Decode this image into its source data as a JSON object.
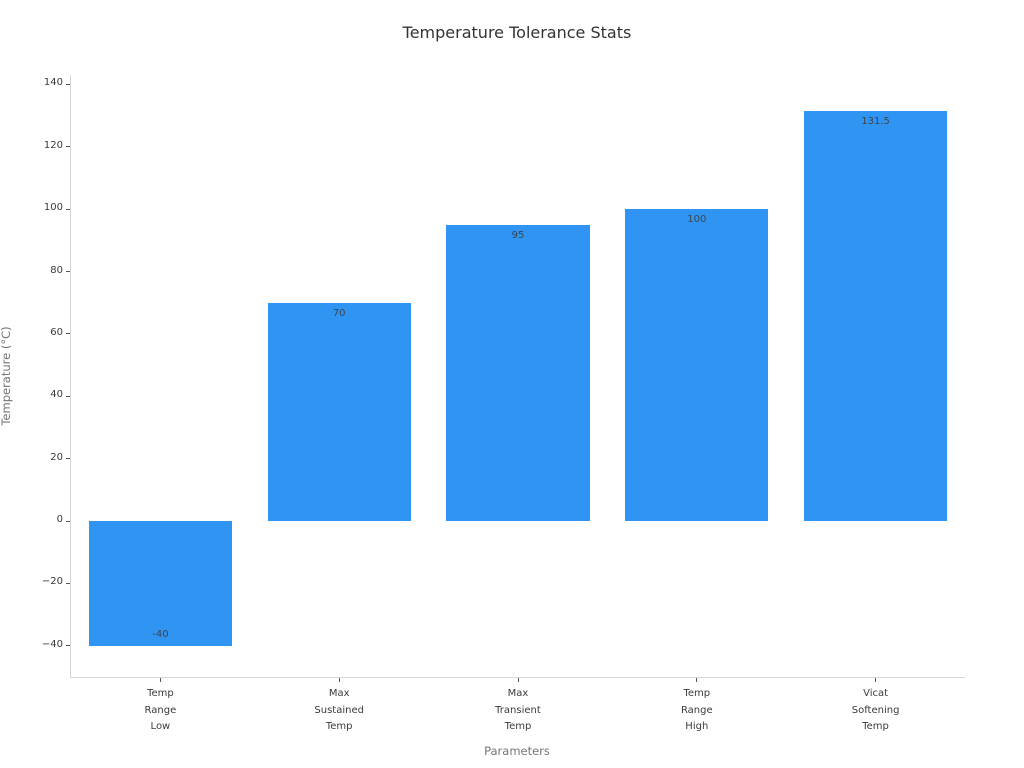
{
  "chart_data": {
    "type": "bar",
    "title": "Temperature Tolerance Stats",
    "xlabel": "Parameters",
    "ylabel": "Temperature (°C)",
    "categories": [
      "Temp\nRange\nLow",
      "Max\nSustained\nTemp",
      "Max\nTransient\nTemp",
      "Temp\nRange\nHigh",
      "Vicat\nSoftening\nTemp"
    ],
    "values": [
      -40,
      70,
      95,
      100,
      131.5
    ],
    "bar_value_labels": [
      "-40",
      "70",
      "95",
      "100",
      "131.5"
    ],
    "yticks": [
      -40,
      -20,
      0,
      20,
      40,
      60,
      80,
      100,
      120,
      140
    ],
    "ylim": [
      -50,
      143
    ],
    "grid": false,
    "legend": null,
    "bar_width_fraction": 0.8
  },
  "colors": {
    "bar": "#3095f2",
    "spine": "#d6d6d6",
    "tick": "#555555",
    "tick_label": "#3a3a3a",
    "axis_label": "#757575",
    "title": "#333333",
    "bar_value_label": "#3a4550",
    "background": "#ffffff"
  }
}
